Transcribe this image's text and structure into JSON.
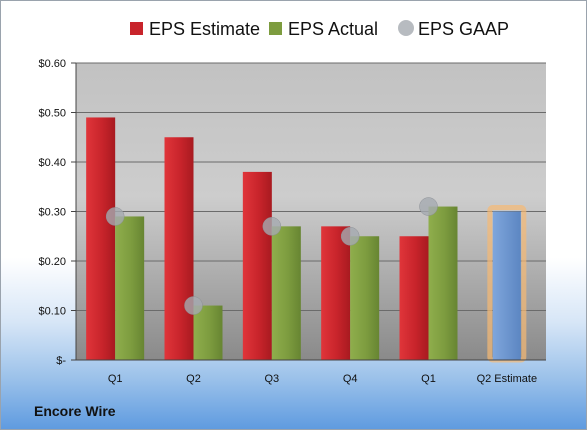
{
  "company_label": "Encore Wire",
  "colors": {
    "estimate": "#c8242b",
    "actual": "#7d9c3f",
    "gaap": "#a5aab0",
    "projected": "#6f98cf",
    "projected_glow": "#f6b974"
  },
  "chart_data": {
    "type": "bar",
    "title": "",
    "xlabel": "",
    "ylabel": "",
    "ylim": [
      0,
      0.6
    ],
    "yticks": [
      {
        "value": 0.6,
        "label": "$0.60"
      },
      {
        "value": 0.5,
        "label": "$0.50"
      },
      {
        "value": 0.4,
        "label": "$0.40"
      },
      {
        "value": 0.3,
        "label": "$0.30"
      },
      {
        "value": 0.2,
        "label": "$0.20"
      },
      {
        "value": 0.1,
        "label": "$0.10"
      },
      {
        "value": 0,
        "label": "$-"
      }
    ],
    "categories": [
      "Q1",
      "Q2",
      "Q3",
      "Q4",
      "Q1",
      "Q2 Estimate"
    ],
    "legend": [
      "EPS Estimate",
      "EPS Actual",
      "EPS GAAP"
    ],
    "legend_position": "top",
    "grid": true,
    "series": [
      {
        "name": "EPS Estimate",
        "type": "bar",
        "values": [
          0.49,
          0.45,
          0.38,
          0.27,
          0.25,
          null
        ]
      },
      {
        "name": "EPS Actual",
        "type": "bar",
        "values": [
          0.29,
          0.11,
          0.27,
          0.25,
          0.31,
          null
        ]
      },
      {
        "name": "EPS GAAP",
        "type": "marker",
        "values": [
          0.29,
          0.11,
          0.27,
          0.25,
          0.31,
          null
        ]
      }
    ],
    "projected_estimate": {
      "category": "Q2 Estimate",
      "value": 0.3
    }
  }
}
